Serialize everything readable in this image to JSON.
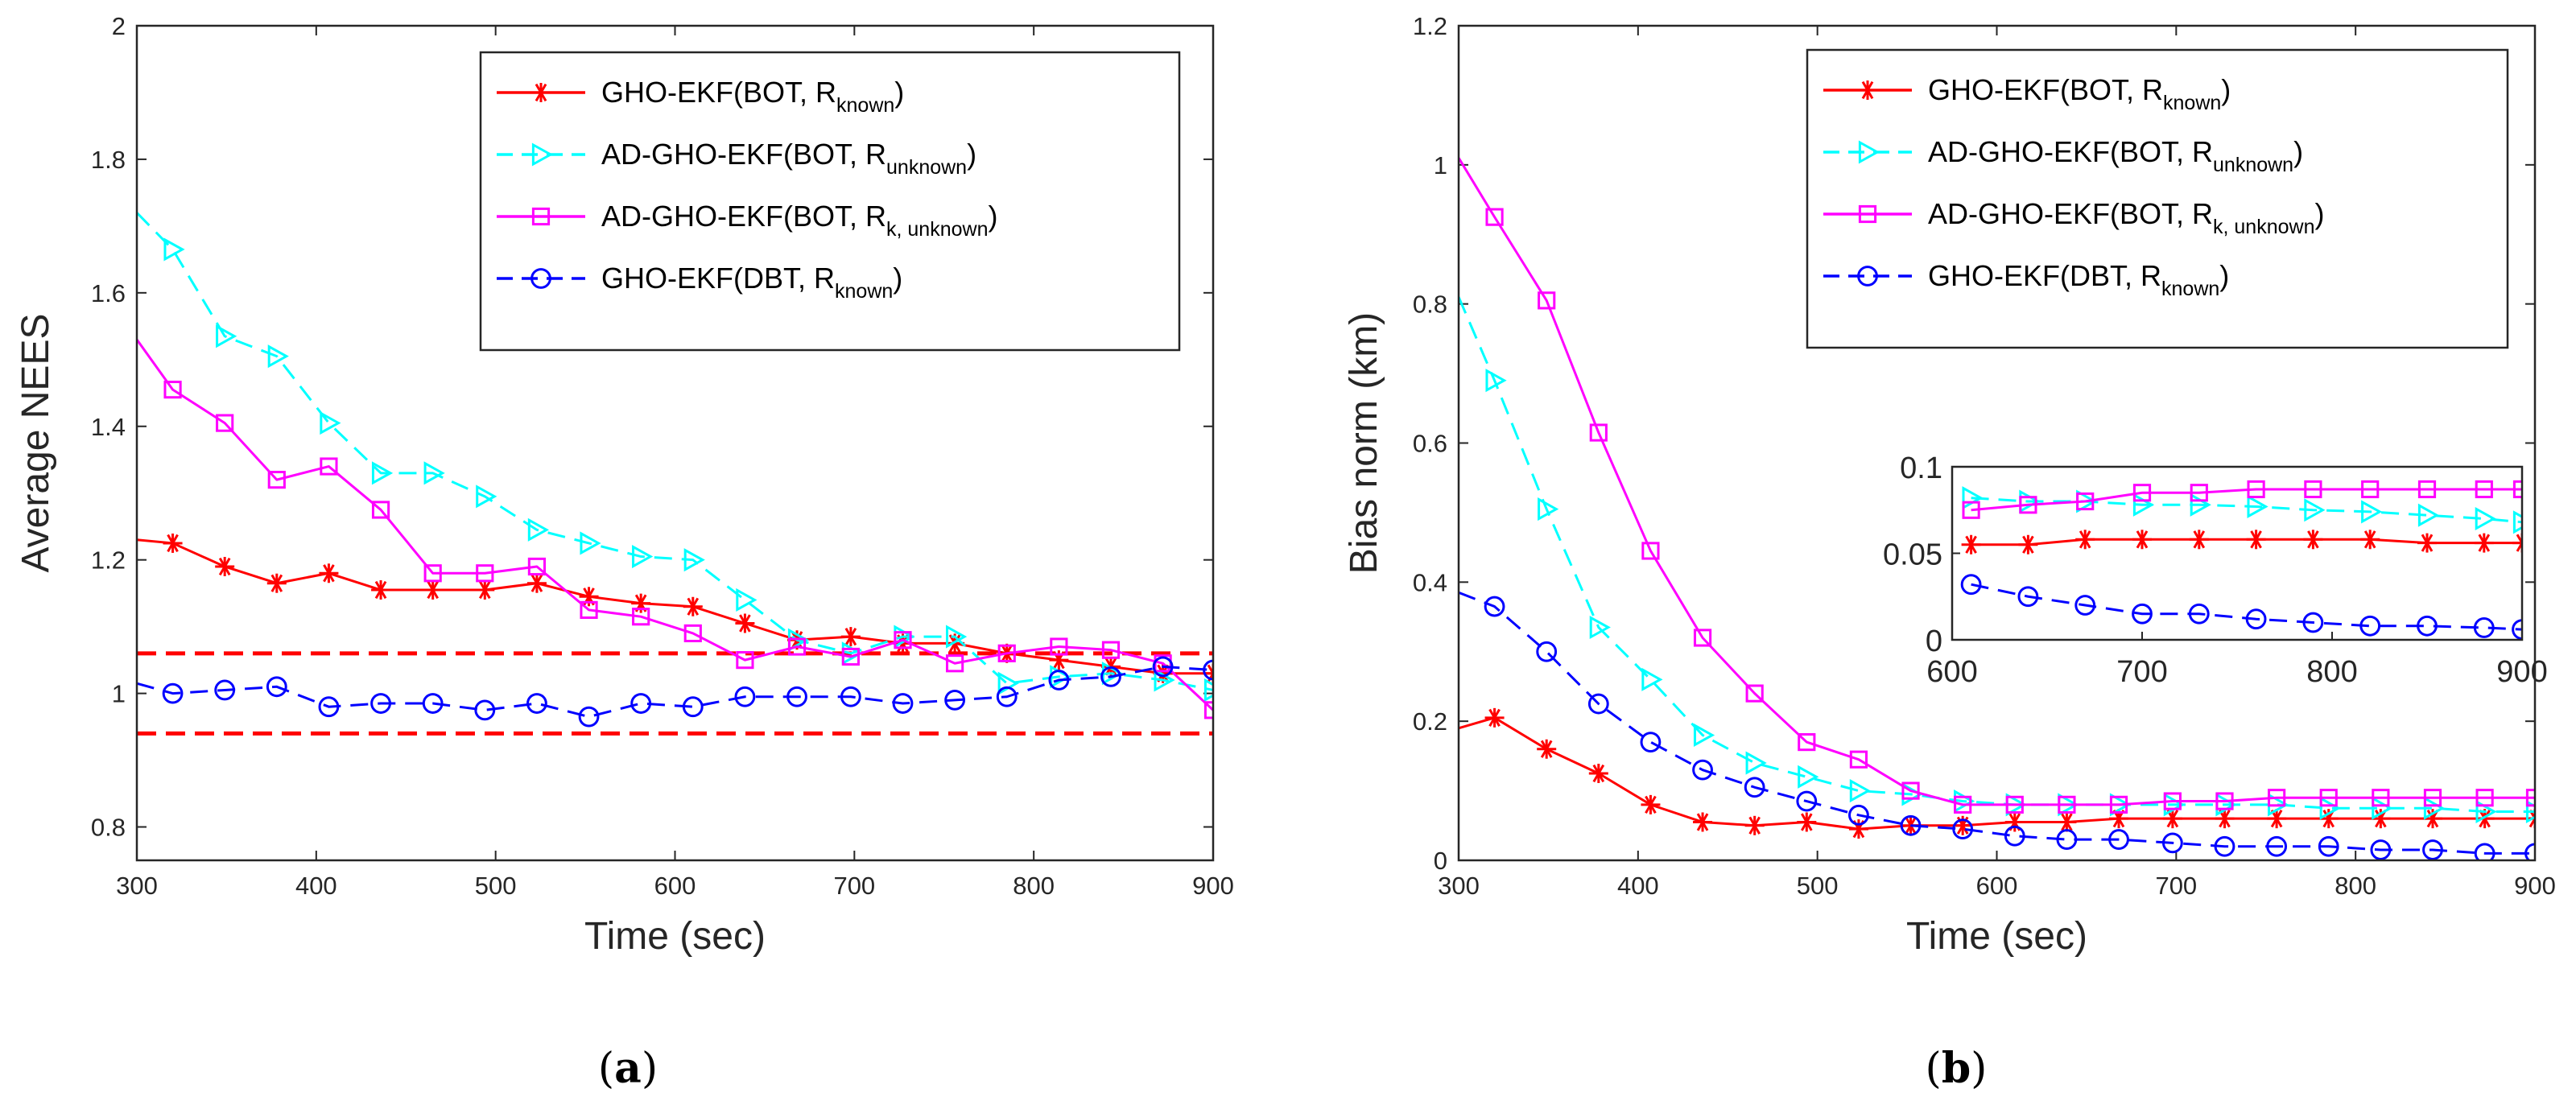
{
  "chart_data": [
    {
      "type": "line",
      "caption": "a",
      "xlabel": "Time (sec)",
      "ylabel": "Average NEES",
      "xlim": [
        300,
        900
      ],
      "ylim": [
        0.75,
        2.0
      ],
      "xticks": [
        300,
        400,
        500,
        600,
        700,
        800,
        900
      ],
      "yticks": [
        0.8,
        1,
        1.2,
        1.4,
        1.6,
        1.8,
        2
      ],
      "legend_position": "top-right",
      "reference_lines": [
        {
          "y": 1.06,
          "color": "#ff0000",
          "style": "dashed"
        },
        {
          "y": 0.94,
          "color": "#ff0000",
          "style": "dashed"
        }
      ],
      "series": [
        {
          "name": "GHO-EKF(BOT, R",
          "sub": "known",
          "tail": ")",
          "color": "#ff0000",
          "dash": "solid",
          "marker": "asterisk",
          "x": [
            300,
            320,
            349,
            378,
            407,
            436,
            465,
            494,
            523,
            552,
            581,
            610,
            639,
            668,
            698,
            727,
            756,
            785,
            814,
            843,
            872,
            900
          ],
          "values": [
            1.23,
            1.225,
            1.19,
            1.165,
            1.18,
            1.155,
            1.155,
            1.155,
            1.165,
            1.145,
            1.135,
            1.13,
            1.105,
            1.08,
            1.085,
            1.075,
            1.075,
            1.06,
            1.05,
            1.04,
            1.03,
            1.03
          ]
        },
        {
          "name": "AD-GHO-EKF(BOT, R",
          "sub": "unknown",
          "tail": ")",
          "color": "#00ffff",
          "dash": "dashed",
          "marker": "triangle-right",
          "x": [
            300,
            320,
            349,
            378,
            407,
            436,
            465,
            494,
            523,
            552,
            581,
            610,
            639,
            668,
            698,
            727,
            756,
            785,
            814,
            843,
            872,
            900
          ],
          "values": [
            1.72,
            1.665,
            1.535,
            1.505,
            1.405,
            1.33,
            1.33,
            1.295,
            1.245,
            1.225,
            1.205,
            1.2,
            1.14,
            1.08,
            1.06,
            1.085,
            1.085,
            1.015,
            1.025,
            1.03,
            1.02,
            1.005
          ]
        },
        {
          "name": "AD-GHO-EKF(BOT, R",
          "sub": "k, unknown",
          "tail": ")",
          "color": "#ff00ff",
          "dash": "solid",
          "marker": "square",
          "x": [
            300,
            320,
            349,
            378,
            407,
            436,
            465,
            494,
            523,
            552,
            581,
            610,
            639,
            668,
            698,
            727,
            756,
            785,
            814,
            843,
            872,
            900
          ],
          "values": [
            1.53,
            1.455,
            1.405,
            1.32,
            1.34,
            1.275,
            1.18,
            1.18,
            1.19,
            1.125,
            1.115,
            1.09,
            1.05,
            1.07,
            1.055,
            1.08,
            1.045,
            1.06,
            1.07,
            1.065,
            1.045,
            0.975
          ]
        },
        {
          "name": "GHO-EKF(DBT, R",
          "sub": "known",
          "tail": ")",
          "color": "#0000ff",
          "dash": "dashed",
          "marker": "circle",
          "x": [
            300,
            320,
            349,
            378,
            407,
            436,
            465,
            494,
            523,
            552,
            581,
            610,
            639,
            668,
            698,
            727,
            756,
            785,
            814,
            843,
            872,
            900
          ],
          "values": [
            1.015,
            1.0,
            1.005,
            1.01,
            0.98,
            0.985,
            0.985,
            0.975,
            0.985,
            0.965,
            0.985,
            0.98,
            0.995,
            0.995,
            0.995,
            0.985,
            0.99,
            0.995,
            1.02,
            1.025,
            1.04,
            1.035
          ]
        }
      ]
    },
    {
      "type": "line",
      "caption": "b",
      "xlabel": "Time (sec)",
      "ylabel": "Bias norm (km)",
      "xlim": [
        300,
        900
      ],
      "ylim": [
        0,
        1.2
      ],
      "xticks": [
        300,
        400,
        500,
        600,
        700,
        800,
        900
      ],
      "yticks": [
        0,
        0.2,
        0.4,
        0.6,
        0.8,
        1,
        1.2
      ],
      "legend_position": "top-right",
      "series": [
        {
          "name": "GHO-EKF(BOT, R",
          "sub": "known",
          "tail": ")",
          "color": "#ff0000",
          "dash": "solid",
          "marker": "asterisk",
          "x": [
            300,
            320,
            349,
            378,
            407,
            436,
            465,
            494,
            523,
            552,
            581,
            610,
            639,
            668,
            698,
            727,
            756,
            785,
            814,
            843,
            872,
            900
          ],
          "values": [
            0.19,
            0.205,
            0.16,
            0.125,
            0.08,
            0.055,
            0.05,
            0.055,
            0.045,
            0.05,
            0.05,
            0.055,
            0.055,
            0.06,
            0.06,
            0.06,
            0.06,
            0.06,
            0.06,
            0.06,
            0.06,
            0.06
          ]
        },
        {
          "name": "AD-GHO-EKF(BOT, R",
          "sub": "unknown",
          "tail": ")",
          "color": "#00ffff",
          "dash": "dashed",
          "marker": "triangle-right",
          "x": [
            300,
            320,
            349,
            378,
            407,
            436,
            465,
            494,
            523,
            552,
            581,
            610,
            639,
            668,
            698,
            727,
            756,
            785,
            814,
            843,
            872,
            900
          ],
          "values": [
            0.81,
            0.69,
            0.505,
            0.335,
            0.26,
            0.18,
            0.14,
            0.12,
            0.1,
            0.095,
            0.085,
            0.08,
            0.08,
            0.08,
            0.08,
            0.08,
            0.08,
            0.075,
            0.075,
            0.075,
            0.07,
            0.07
          ]
        },
        {
          "name": "AD-GHO-EKF(BOT, R",
          "sub": "k, unknown",
          "tail": ")",
          "color": "#ff00ff",
          "dash": "solid",
          "marker": "square",
          "x": [
            300,
            320,
            349,
            378,
            407,
            436,
            465,
            494,
            523,
            552,
            581,
            610,
            639,
            668,
            698,
            727,
            756,
            785,
            814,
            843,
            872,
            900
          ],
          "values": [
            1.01,
            0.925,
            0.805,
            0.615,
            0.445,
            0.32,
            0.24,
            0.17,
            0.145,
            0.1,
            0.08,
            0.08,
            0.08,
            0.08,
            0.085,
            0.085,
            0.09,
            0.09,
            0.09,
            0.09,
            0.09,
            0.09
          ]
        },
        {
          "name": "GHO-EKF(DBT, R",
          "sub": "known",
          "tail": ")",
          "color": "#0000ff",
          "dash": "dashed",
          "marker": "circle",
          "x": [
            300,
            320,
            349,
            378,
            407,
            436,
            465,
            494,
            523,
            552,
            581,
            610,
            639,
            668,
            698,
            727,
            756,
            785,
            814,
            843,
            872,
            900
          ],
          "values": [
            0.385,
            0.365,
            0.3,
            0.225,
            0.17,
            0.13,
            0.105,
            0.085,
            0.065,
            0.05,
            0.045,
            0.035,
            0.03,
            0.03,
            0.025,
            0.02,
            0.02,
            0.02,
            0.015,
            0.015,
            0.01,
            0.01
          ]
        }
      ],
      "inset": {
        "xlim": [
          600,
          900
        ],
        "ylim": [
          0,
          0.1
        ],
        "xticks": [
          600,
          700,
          800,
          900
        ],
        "yticks": [
          0,
          0.05,
          0.1
        ],
        "series": [
          {
            "color": "#ff0000",
            "dash": "solid",
            "marker": "asterisk",
            "x": [
              610,
              640,
              670,
              700,
              730,
              760,
              790,
              820,
              850,
              880,
              900
            ],
            "values": [
              0.055,
              0.055,
              0.058,
              0.058,
              0.058,
              0.058,
              0.058,
              0.058,
              0.056,
              0.056,
              0.056
            ]
          },
          {
            "color": "#00ffff",
            "dash": "dashed",
            "marker": "triangle-right",
            "x": [
              610,
              640,
              670,
              700,
              730,
              760,
              790,
              820,
              850,
              880,
              900
            ],
            "values": [
              0.082,
              0.08,
              0.08,
              0.078,
              0.078,
              0.077,
              0.075,
              0.074,
              0.072,
              0.07,
              0.068
            ]
          },
          {
            "color": "#ff00ff",
            "dash": "solid",
            "marker": "square",
            "x": [
              610,
              640,
              670,
              700,
              730,
              760,
              790,
              820,
              850,
              880,
              900
            ],
            "values": [
              0.075,
              0.078,
              0.08,
              0.085,
              0.085,
              0.087,
              0.087,
              0.087,
              0.087,
              0.087,
              0.087
            ]
          },
          {
            "color": "#0000ff",
            "dash": "dashed",
            "marker": "circle",
            "x": [
              610,
              640,
              670,
              700,
              730,
              760,
              790,
              820,
              850,
              880,
              900
            ],
            "values": [
              0.032,
              0.025,
              0.02,
              0.015,
              0.015,
              0.012,
              0.01,
              0.008,
              0.008,
              0.007,
              0.006
            ]
          }
        ]
      }
    }
  ]
}
